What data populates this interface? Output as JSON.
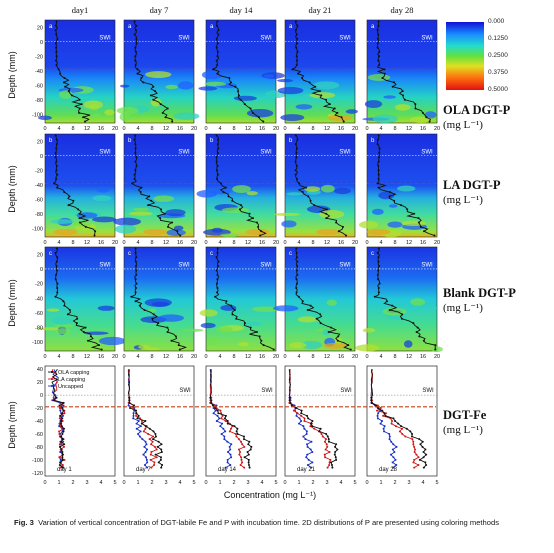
{
  "columns": [
    "day1",
    "day 7",
    "day 14",
    "day 21",
    "day 28"
  ],
  "panel_letters": [
    "a",
    "b",
    "c"
  ],
  "swi_label": "SWI",
  "y_axis_label": "Depth (mm)",
  "x_axis_label": "Concentration (mg L⁻¹)",
  "y_ticks_p": [
    "20",
    "0",
    "-20",
    "-40",
    "-60",
    "-80",
    "-100"
  ],
  "x_ticks_p": [
    "0",
    "4",
    "8",
    "12",
    "16",
    "20"
  ],
  "y_ticks_fe": [
    "40",
    "20",
    "0",
    "-20",
    "-40",
    "-60",
    "-80",
    "-100",
    "-120"
  ],
  "x_ticks_fe": [
    "0",
    "1",
    "2",
    "3",
    "4",
    "5"
  ],
  "fe_day_labels": [
    "day 1",
    "day 7",
    "day 14",
    "day 21",
    "day 28"
  ],
  "rows": [
    {
      "title": "OLA DGT-P",
      "unit": "(mg L⁻¹)"
    },
    {
      "title": "LA DGT-P",
      "unit": "(mg L⁻¹)"
    },
    {
      "title": "Blank DGT-P",
      "unit": "(mg L⁻¹)"
    },
    {
      "title": "DGT-Fe",
      "unit": "(mg L⁻¹)"
    }
  ],
  "colorbar": {
    "ticks": [
      "0.000",
      "0.1250",
      "0.2500",
      "0.3750",
      "0.5000"
    ],
    "colors": [
      "#1010d8",
      "#1a8cff",
      "#22dccc",
      "#62e040",
      "#e0e020",
      "#ff7010",
      "#e01010"
    ]
  },
  "legend": [
    "OLA capping",
    "LA capping",
    "Uncapped"
  ],
  "series_colors": {
    "ola": "#111111",
    "la": "#d01818",
    "uncapped": "#1830c8"
  },
  "caption": {
    "label": "Fig. 3",
    "text": "Variation of vertical concentration of DGT-labile Fe and P with incubation time. 2D distributions of P are presented using coloring methods"
  }
}
